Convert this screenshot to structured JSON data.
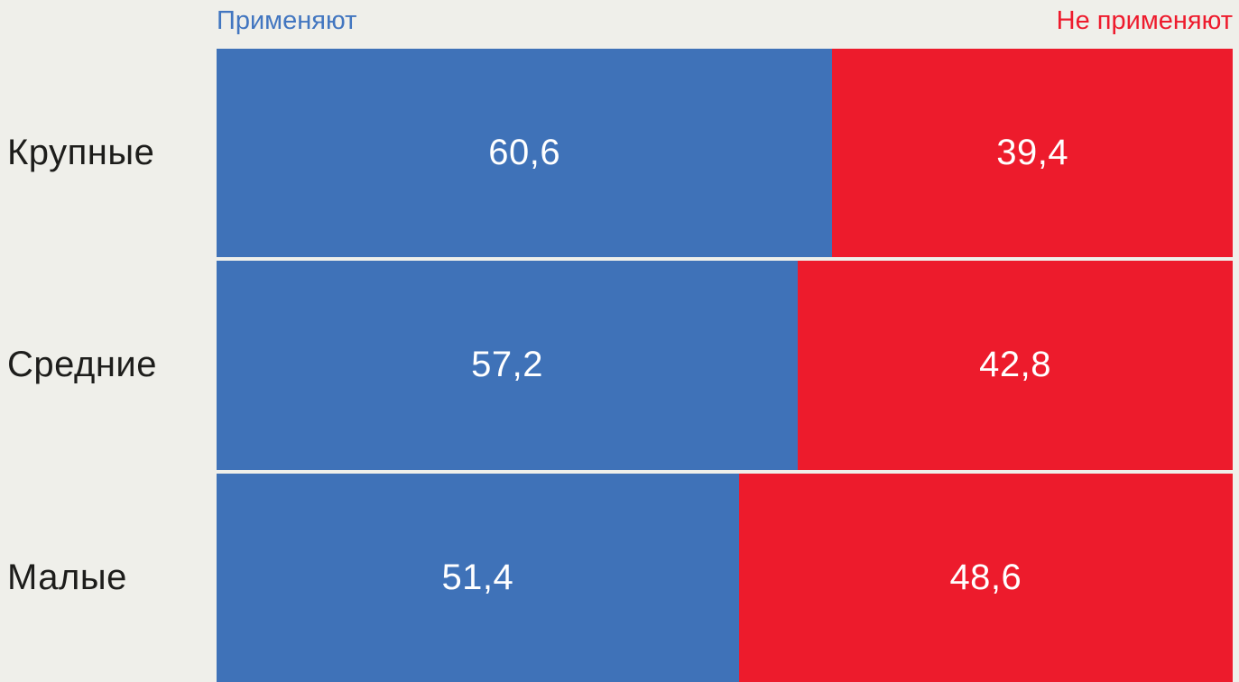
{
  "page": {
    "background": "#efefea"
  },
  "legend": {
    "left": {
      "label": "Применяют",
      "color": "#4276c0"
    },
    "right": {
      "label": "Не применяют",
      "color": "#ee1b2d"
    }
  },
  "styles": {
    "value_text_color": "#ffffff",
    "category_text_color": "#1d1d1b"
  },
  "chart_data": {
    "type": "bar",
    "orientation": "horizontal",
    "stacked": true,
    "units": "percent",
    "title": "",
    "categories": [
      "Крупные",
      "Средние",
      "Малые"
    ],
    "series": [
      {
        "name": "Применяют",
        "color": "#3f72b8",
        "values": [
          60.6,
          57.2,
          51.4
        ]
      },
      {
        "name": "Не применяют",
        "color": "#ed1b2c",
        "values": [
          39.4,
          42.8,
          48.6
        ]
      }
    ],
    "value_labels": [
      [
        "60,6",
        "39,4"
      ],
      [
        "57,2",
        "42,8"
      ],
      [
        "51,4",
        "48,6"
      ]
    ],
    "xlim": [
      0,
      100
    ],
    "grid": false,
    "legend_position": "top"
  }
}
